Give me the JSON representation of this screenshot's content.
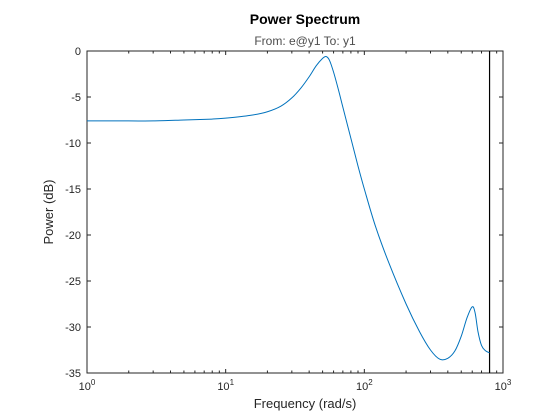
{
  "chart_data": {
    "type": "line",
    "title": "Power Spectrum",
    "subtitle": "From: e@y1  To: y1",
    "xlabel": "Frequency  (rad/s)",
    "ylabel": "Power (dB)",
    "xscale": "log",
    "xlim": [
      1,
      1000
    ],
    "ylim": [
      -35,
      0
    ],
    "xticks": [
      1,
      10,
      100,
      1000
    ],
    "xtick_labels": [
      {
        "base": "10",
        "exp": "0"
      },
      {
        "base": "10",
        "exp": "1"
      },
      {
        "base": "10",
        "exp": "2"
      },
      {
        "base": "10",
        "exp": "3"
      }
    ],
    "yticks": [
      0,
      -5,
      -10,
      -15,
      -20,
      -25,
      -30,
      -35
    ],
    "ytick_labels": [
      "0",
      "-5",
      "-10",
      "-15",
      "-20",
      "-25",
      "-30",
      "-35"
    ],
    "grid": false,
    "series": [
      {
        "color": "#0072BD",
        "x": [
          1,
          2,
          3,
          5,
          8,
          10,
          15,
          20,
          25,
          30,
          35,
          40,
          45,
          50,
          53,
          56,
          60,
          65,
          70,
          80,
          90,
          100,
          120,
          150,
          200,
          250,
          300,
          350,
          400,
          450,
          500,
          550,
          600,
          630,
          660,
          700,
          750,
          800
        ],
        "y": [
          -7.6,
          -7.6,
          -7.6,
          -7.5,
          -7.4,
          -7.3,
          -7.0,
          -6.6,
          -6.0,
          -5.1,
          -4.0,
          -2.8,
          -1.6,
          -0.8,
          -0.6,
          -1.0,
          -2.3,
          -4.2,
          -6.1,
          -9.5,
          -12.5,
          -15.0,
          -19.0,
          -23.0,
          -27.5,
          -30.5,
          -32.5,
          -33.5,
          -33.4,
          -32.6,
          -31.0,
          -29.0,
          -27.8,
          -28.5,
          -30.5,
          -32.0,
          -32.6,
          -32.8
        ]
      }
    ],
    "vertical_line": {
      "x": 800,
      "color": "#000000"
    }
  }
}
